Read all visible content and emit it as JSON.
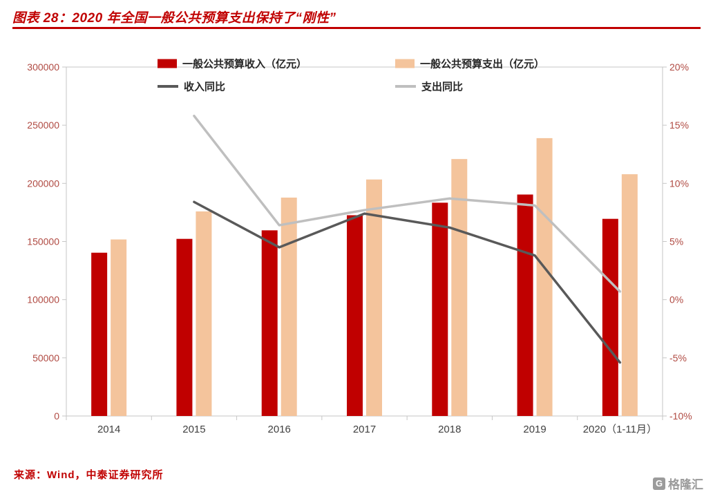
{
  "header": {
    "title": "图表 28：2020 年全国一般公共预算支出保持了“刚性”"
  },
  "footer": {
    "source": "来源：Wind，中泰证券研究所",
    "logo_text": "格隆汇",
    "logo_glyph": "G"
  },
  "chart_data": {
    "type": "combo-bar-line",
    "categories": [
      "2014",
      "2015",
      "2016",
      "2017",
      "2018",
      "2019",
      "2020（1-11月）"
    ],
    "bar_series": [
      {
        "id": "revenue-bar",
        "name": "一般公共预算收入（亿元）",
        "color": "#c00000",
        "axis": "left",
        "values": [
          140370,
          152269,
          159605,
          172593,
          183360,
          190390,
          169489
        ]
      },
      {
        "id": "expenditure-bar",
        "name": "一般公共预算支出（亿元）",
        "color": "#f4c49c",
        "axis": "left",
        "values": [
          151786,
          175878,
          187755,
          203330,
          220904,
          238874,
          207846
        ]
      }
    ],
    "line_series": [
      {
        "id": "revenue-yoy",
        "name": "收入同比",
        "color": "#595959",
        "axis": "right",
        "values": [
          null,
          8.4,
          4.5,
          7.4,
          6.2,
          3.8,
          -5.4
        ]
      },
      {
        "id": "expenditure-yoy",
        "name": "支出同比",
        "color": "#bfbfbf",
        "axis": "right",
        "values": [
          null,
          15.8,
          6.4,
          7.7,
          8.7,
          8.1,
          0.7
        ]
      }
    ],
    "left_axis": {
      "min": 0,
      "max": 300000,
      "step": 50000,
      "ticks": [
        "0",
        "50000",
        "100000",
        "150000",
        "200000",
        "250000",
        "300000"
      ]
    },
    "right_axis": {
      "min": -10,
      "max": 20,
      "step": 5,
      "ticks": [
        "-10%",
        "-5%",
        "0%",
        "5%",
        "10%",
        "15%",
        "20%"
      ]
    },
    "legend_position": "top",
    "grid": "off",
    "style": {
      "accent": "#c00000",
      "axis_line_color": "#c6c6c6",
      "axis_label_color": "#b04a42",
      "x_label_color": "#404040",
      "legend_text_color": "#262626"
    }
  }
}
